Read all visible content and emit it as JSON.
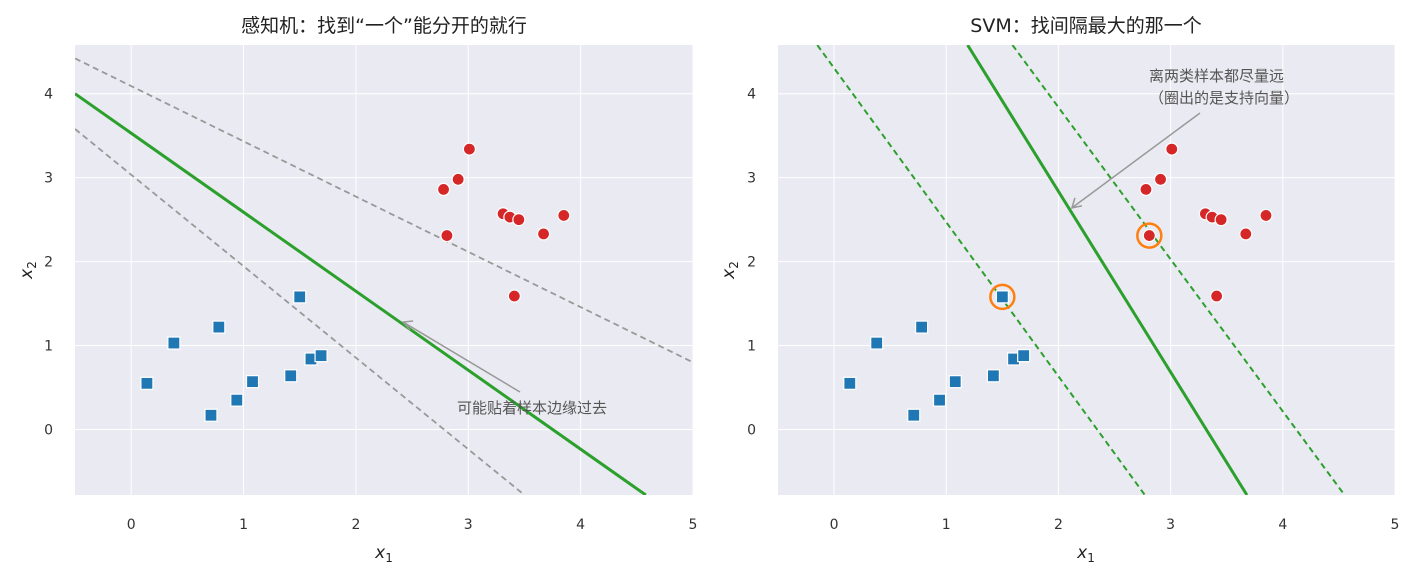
{
  "chart_data": [
    {
      "type": "scatter",
      "title": "感知机：找到“一个”能分开的就行",
      "xlabel": "x",
      "xlabel_sub": "1",
      "ylabel": "x",
      "ylabel_sub": "2",
      "xlim": [
        -0.5,
        5.0
      ],
      "ylim": [
        -0.78,
        4.58
      ],
      "xticks": [
        0,
        1,
        2,
        3,
        4,
        5
      ],
      "yticks": [
        0,
        1,
        2,
        3,
        4
      ],
      "grid": true,
      "series": [
        {
          "marker": "square",
          "color": "#1f77b4",
          "points": [
            [
              0.14,
              0.55
            ],
            [
              0.38,
              1.03
            ],
            [
              0.71,
              0.17
            ],
            [
              0.78,
              1.22
            ],
            [
              0.94,
              0.35
            ],
            [
              1.08,
              0.57
            ],
            [
              1.42,
              0.64
            ],
            [
              1.5,
              1.58
            ],
            [
              1.6,
              0.84
            ],
            [
              1.69,
              0.88
            ]
          ]
        },
        {
          "marker": "circle",
          "color": "#d62728",
          "points": [
            [
              2.78,
              2.86
            ],
            [
              2.81,
              2.31
            ],
            [
              2.91,
              2.98
            ],
            [
              3.01,
              3.34
            ],
            [
              3.31,
              2.57
            ],
            [
              3.37,
              2.53
            ],
            [
              3.41,
              1.59
            ],
            [
              3.45,
              2.5
            ],
            [
              3.67,
              2.33
            ],
            [
              3.85,
              2.55
            ]
          ]
        }
      ],
      "lines": [
        {
          "style": "solid",
          "color": "#2ca02c",
          "p1": [
            -0.5,
            4.0
          ],
          "p2": [
            4.58,
            -0.78
          ]
        },
        {
          "style": "dashed",
          "color": "#999999",
          "p1": [
            -0.5,
            4.42
          ],
          "p2": [
            5.0,
            0.8
          ]
        },
        {
          "style": "dashed",
          "color": "#999999",
          "p1": [
            -0.5,
            3.58
          ],
          "p2": [
            3.5,
            -0.78
          ]
        }
      ],
      "annotations": [
        {
          "text": "可能贴着样本边缘过去",
          "xy": [
            2.42,
            1.28
          ],
          "xytext": [
            2.9,
            0.28
          ]
        }
      ]
    },
    {
      "type": "scatter",
      "title": "SVM：找间隔最大的那一个",
      "xlabel": "x",
      "xlabel_sub": "1",
      "ylabel": "x",
      "ylabel_sub": "2",
      "xlim": [
        -0.5,
        5.0
      ],
      "ylim": [
        -0.78,
        4.58
      ],
      "xticks": [
        0,
        1,
        2,
        3,
        4,
        5
      ],
      "yticks": [
        0,
        1,
        2,
        3,
        4
      ],
      "grid": true,
      "series": [
        {
          "marker": "square",
          "color": "#1f77b4",
          "points": [
            [
              0.14,
              0.55
            ],
            [
              0.38,
              1.03
            ],
            [
              0.71,
              0.17
            ],
            [
              0.78,
              1.22
            ],
            [
              0.94,
              0.35
            ],
            [
              1.08,
              0.57
            ],
            [
              1.42,
              0.64
            ],
            [
              1.5,
              1.58
            ],
            [
              1.6,
              0.84
            ],
            [
              1.69,
              0.88
            ]
          ]
        },
        {
          "marker": "circle",
          "color": "#d62728",
          "points": [
            [
              2.78,
              2.86
            ],
            [
              2.81,
              2.31
            ],
            [
              2.91,
              2.98
            ],
            [
              3.01,
              3.34
            ],
            [
              3.31,
              2.57
            ],
            [
              3.37,
              2.53
            ],
            [
              3.41,
              1.59
            ],
            [
              3.45,
              2.5
            ],
            [
              3.67,
              2.33
            ],
            [
              3.85,
              2.55
            ]
          ]
        }
      ],
      "lines": [
        {
          "style": "solid",
          "color": "#2ca02c",
          "p1": [
            1.19,
            4.58
          ],
          "p2": [
            3.68,
            -0.78
          ]
        },
        {
          "style": "dashed",
          "color": "#2ca02c",
          "p1": [
            -0.15,
            4.58
          ],
          "p2": [
            2.77,
            -0.78
          ]
        },
        {
          "style": "dashed",
          "color": "#2ca02c",
          "p1": [
            1.59,
            4.58
          ],
          "p2": [
            4.55,
            -0.78
          ]
        }
      ],
      "support_vectors": {
        "color": "#ff7f0e",
        "points": [
          [
            1.5,
            1.58
          ],
          [
            2.81,
            2.31
          ]
        ]
      },
      "annotations": [
        {
          "text": "离两类样本都尽量远",
          "text2": "（圈出的是支持向量）",
          "xy": [
            2.12,
            2.64
          ],
          "xytext": [
            2.93,
            4.03
          ]
        }
      ]
    }
  ]
}
